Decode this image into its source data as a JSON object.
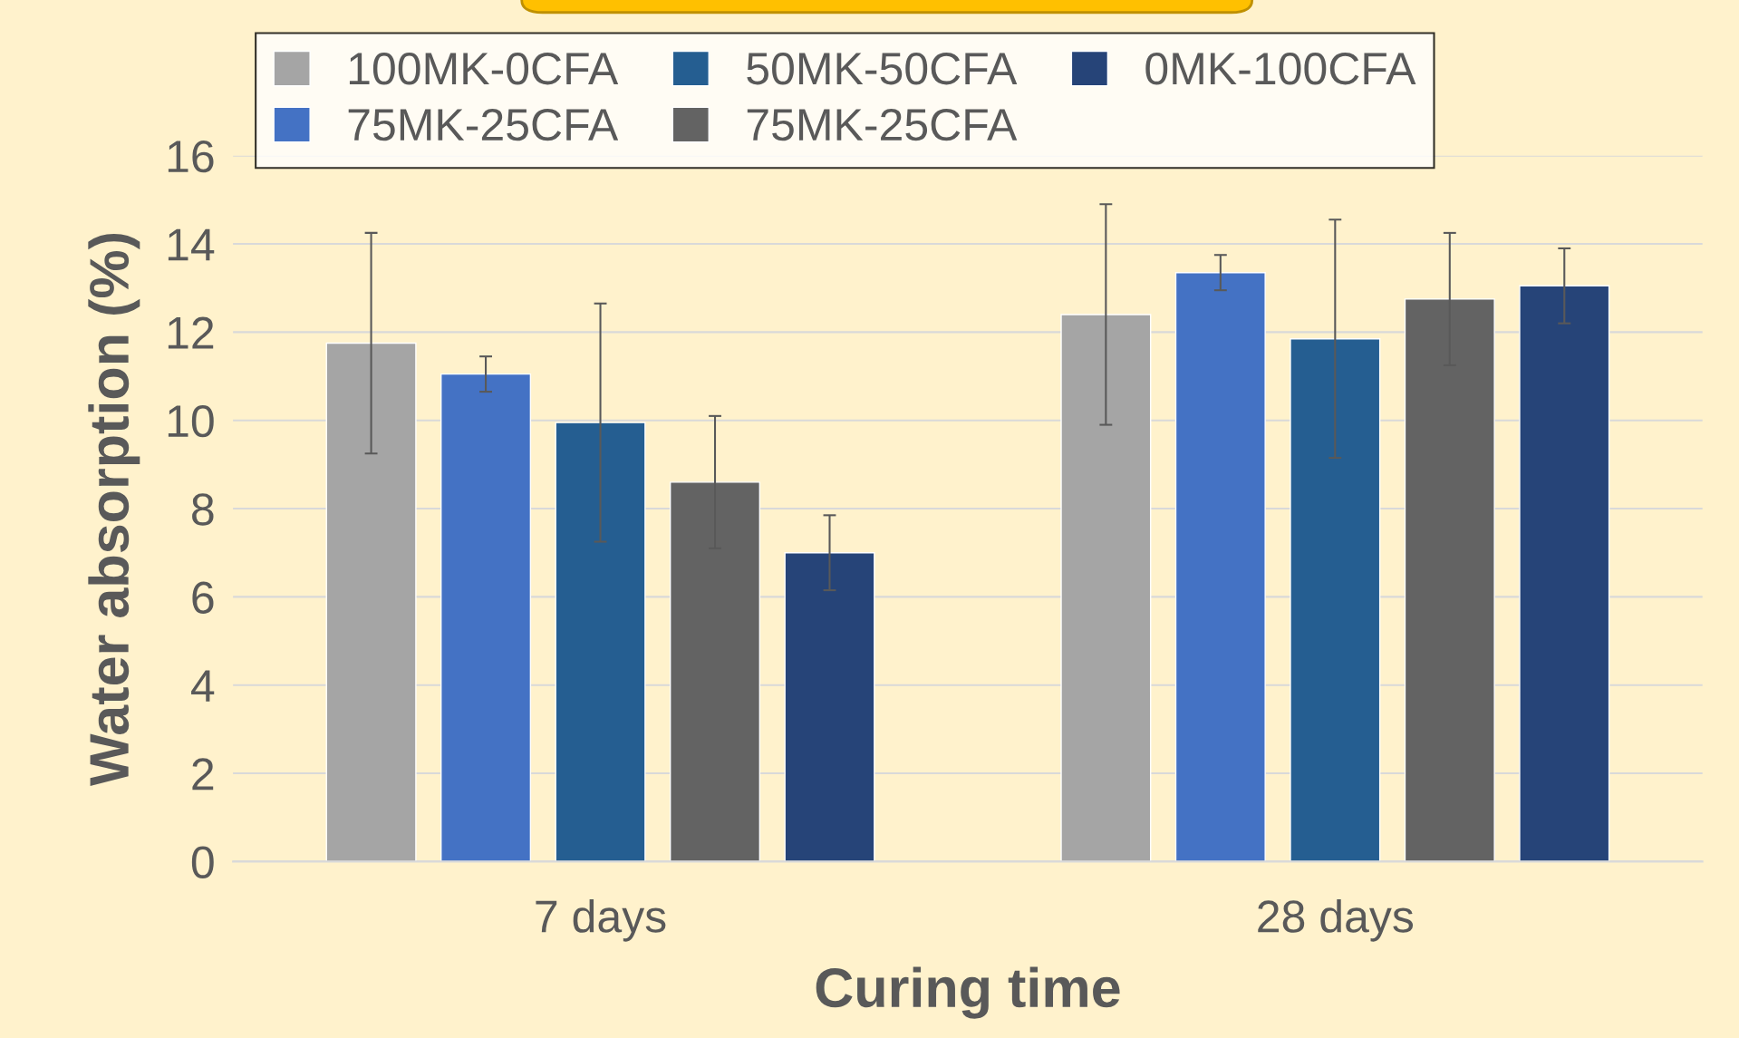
{
  "chart_data": {
    "type": "bar",
    "xlabel": "Curing time",
    "ylabel": "Water absorption (%)",
    "categories": [
      "7 days",
      "28 days"
    ],
    "series": [
      {
        "name": "100MK-0CFA",
        "color": "#a5a5a5",
        "values": [
          11.75,
          12.4
        ],
        "errors": [
          2.5,
          2.5
        ]
      },
      {
        "name": "75MK-25CFA",
        "color": "#4472c4",
        "values": [
          11.05,
          13.35
        ],
        "errors": [
          0.4,
          0.4
        ]
      },
      {
        "name": "50MK-50CFA",
        "color": "#255e91",
        "values": [
          9.95,
          11.85
        ],
        "errors": [
          2.7,
          2.7
        ]
      },
      {
        "name": "75MK-25CFA",
        "color": "#636363",
        "values": [
          8.6,
          12.75
        ],
        "errors": [
          1.5,
          1.5
        ]
      },
      {
        "name": "0MK-100CFA",
        "color": "#264478",
        "values": [
          7.0,
          13.05
        ],
        "errors": [
          0.85,
          0.85
        ]
      }
    ],
    "ylim": [
      0,
      16
    ],
    "yticks": [
      0,
      2,
      4,
      6,
      8,
      10,
      12,
      14,
      16
    ],
    "grid": "y",
    "legend": "top"
  }
}
